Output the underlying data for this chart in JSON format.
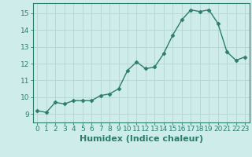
{
  "x": [
    0,
    1,
    2,
    3,
    4,
    5,
    6,
    7,
    8,
    9,
    10,
    11,
    12,
    13,
    14,
    15,
    16,
    17,
    18,
    19,
    20,
    21,
    22,
    23
  ],
  "y": [
    9.2,
    9.1,
    9.7,
    9.6,
    9.8,
    9.8,
    9.8,
    10.1,
    10.2,
    10.5,
    11.6,
    12.1,
    11.7,
    11.8,
    12.6,
    13.7,
    14.6,
    15.2,
    15.1,
    15.2,
    14.4,
    12.7,
    12.2,
    12.4
  ],
  "line_color": "#2d7d6e",
  "marker_color": "#2d7d6e",
  "bg_color": "#cdecea",
  "grid_color": "#b8d8d5",
  "axis_color": "#2d7d6e",
  "xlabel": "Humidex (Indice chaleur)",
  "ylim": [
    8.5,
    15.6
  ],
  "xlim": [
    -0.5,
    23.5
  ],
  "yticks": [
    9,
    10,
    11,
    12,
    13,
    14,
    15
  ],
  "xticks": [
    0,
    1,
    2,
    3,
    4,
    5,
    6,
    7,
    8,
    9,
    10,
    11,
    12,
    13,
    14,
    15,
    16,
    17,
    18,
    19,
    20,
    21,
    22,
    23
  ],
  "tick_fontsize": 6.5,
  "label_fontsize": 8
}
